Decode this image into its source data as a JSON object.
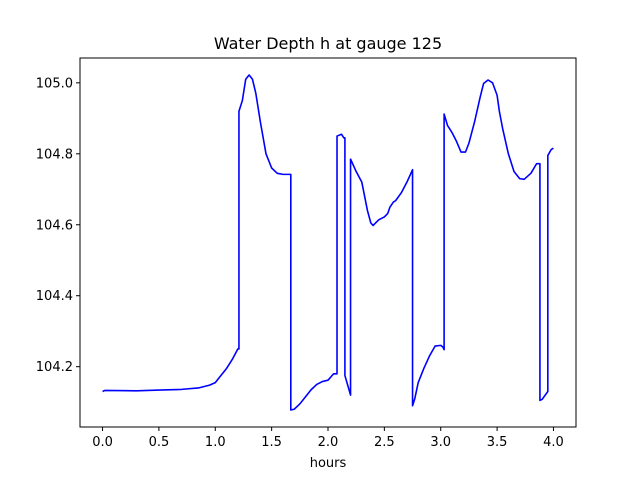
{
  "chart_data": {
    "type": "line",
    "title": "Water Depth h at gauge 125",
    "xlabel": "hours",
    "ylabel": "",
    "xlim": [
      -0.2,
      4.2
    ],
    "ylim": [
      104.03,
      105.07
    ],
    "grid": false,
    "x_ticks": [
      {
        "value": 0.0,
        "label": "0.0"
      },
      {
        "value": 0.5,
        "label": "0.5"
      },
      {
        "value": 1.0,
        "label": "1.0"
      },
      {
        "value": 1.5,
        "label": "1.5"
      },
      {
        "value": 2.0,
        "label": "2.0"
      },
      {
        "value": 2.5,
        "label": "2.5"
      },
      {
        "value": 3.0,
        "label": "3.0"
      },
      {
        "value": 3.5,
        "label": "3.5"
      },
      {
        "value": 4.0,
        "label": "4.0"
      }
    ],
    "y_ticks": [
      {
        "value": 104.2,
        "label": "104.2"
      },
      {
        "value": 104.4,
        "label": "104.4"
      },
      {
        "value": 104.6,
        "label": "104.6"
      },
      {
        "value": 104.8,
        "label": "104.8"
      },
      {
        "value": 105.0,
        "label": "105.0"
      }
    ],
    "series": [
      {
        "color": "#0000ff",
        "x": [
          0.0,
          0.02,
          0.3,
          0.5,
          0.7,
          0.85,
          0.95,
          1.0,
          1.05,
          1.1,
          1.15,
          1.2,
          1.21,
          1.21,
          1.24,
          1.27,
          1.3,
          1.33,
          1.36,
          1.4,
          1.45,
          1.5,
          1.55,
          1.6,
          1.66,
          1.67,
          1.67,
          1.7,
          1.75,
          1.8,
          1.85,
          1.9,
          1.95,
          2.0,
          2.05,
          2.08,
          2.08,
          2.12,
          2.14,
          2.15,
          2.15,
          2.2,
          2.2,
          2.25,
          2.3,
          2.35,
          2.38,
          2.4,
          2.45,
          2.5,
          2.53,
          2.55,
          2.58,
          2.6,
          2.65,
          2.7,
          2.75,
          2.75,
          2.77,
          2.8,
          2.85,
          2.9,
          2.95,
          3.0,
          3.02,
          3.03,
          3.03,
          3.06,
          3.1,
          3.14,
          3.18,
          3.22,
          3.25,
          3.3,
          3.35,
          3.38,
          3.42,
          3.46,
          3.5,
          3.52,
          3.55,
          3.6,
          3.65,
          3.7,
          3.74,
          3.8,
          3.85,
          3.88,
          3.88,
          3.9,
          3.95,
          3.95,
          3.98,
          4.0
        ],
        "y": [
          104.13,
          104.133,
          104.132,
          104.134,
          104.136,
          104.14,
          104.148,
          104.155,
          104.175,
          104.195,
          104.22,
          104.25,
          104.25,
          104.92,
          104.95,
          105.01,
          105.022,
          105.01,
          104.97,
          104.89,
          104.8,
          104.76,
          104.745,
          104.742,
          104.742,
          104.742,
          104.078,
          104.08,
          104.095,
          104.115,
          104.135,
          104.15,
          104.158,
          104.162,
          104.18,
          104.18,
          104.85,
          104.855,
          104.845,
          104.845,
          104.175,
          104.12,
          104.785,
          104.75,
          104.72,
          104.64,
          104.605,
          104.598,
          104.614,
          104.622,
          104.632,
          104.65,
          104.664,
          104.668,
          104.69,
          104.72,
          104.755,
          104.09,
          104.11,
          104.155,
          104.195,
          104.23,
          104.258,
          104.26,
          104.255,
          104.248,
          104.912,
          104.88,
          104.86,
          104.835,
          104.805,
          104.805,
          104.83,
          104.89,
          104.96,
          104.998,
          105.008,
          105.0,
          104.965,
          104.92,
          104.87,
          104.8,
          104.75,
          104.73,
          104.728,
          104.745,
          104.772,
          104.772,
          104.105,
          104.108,
          104.13,
          104.795,
          104.812,
          104.816
        ]
      }
    ]
  }
}
